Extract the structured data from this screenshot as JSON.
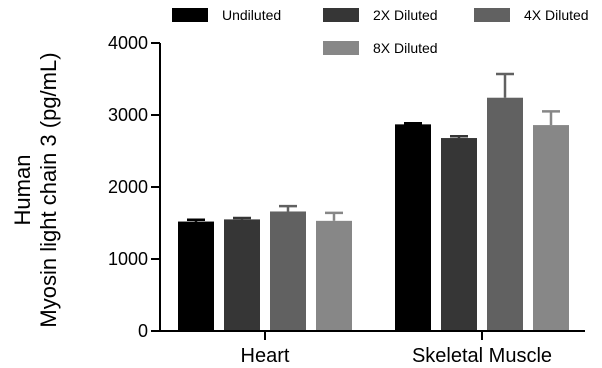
{
  "chart_data": {
    "type": "bar",
    "categories": [
      "Heart",
      "Skeletal Muscle"
    ],
    "ylabel_lines": [
      "Human",
      "Myosin light chain 3 (pg/mL)"
    ],
    "ylim": [
      0,
      4000
    ],
    "yticks": [
      0,
      1000,
      2000,
      3000,
      4000
    ],
    "legend_position": "top",
    "series": [
      {
        "name": "Undiluted",
        "color": "#000000",
        "values": [
          1520,
          2870
        ],
        "errors": [
          25,
          15
        ]
      },
      {
        "name": "2X Diluted",
        "color": "#363636",
        "values": [
          1550,
          2680
        ],
        "errors": [
          20,
          25
        ]
      },
      {
        "name": "4X Diluted",
        "color": "#616161",
        "values": [
          1660,
          3240
        ],
        "errors": [
          75,
          330
        ]
      },
      {
        "name": "8X Diluted",
        "color": "#878787",
        "values": [
          1530,
          2860
        ],
        "errors": [
          110,
          190
        ]
      }
    ]
  }
}
